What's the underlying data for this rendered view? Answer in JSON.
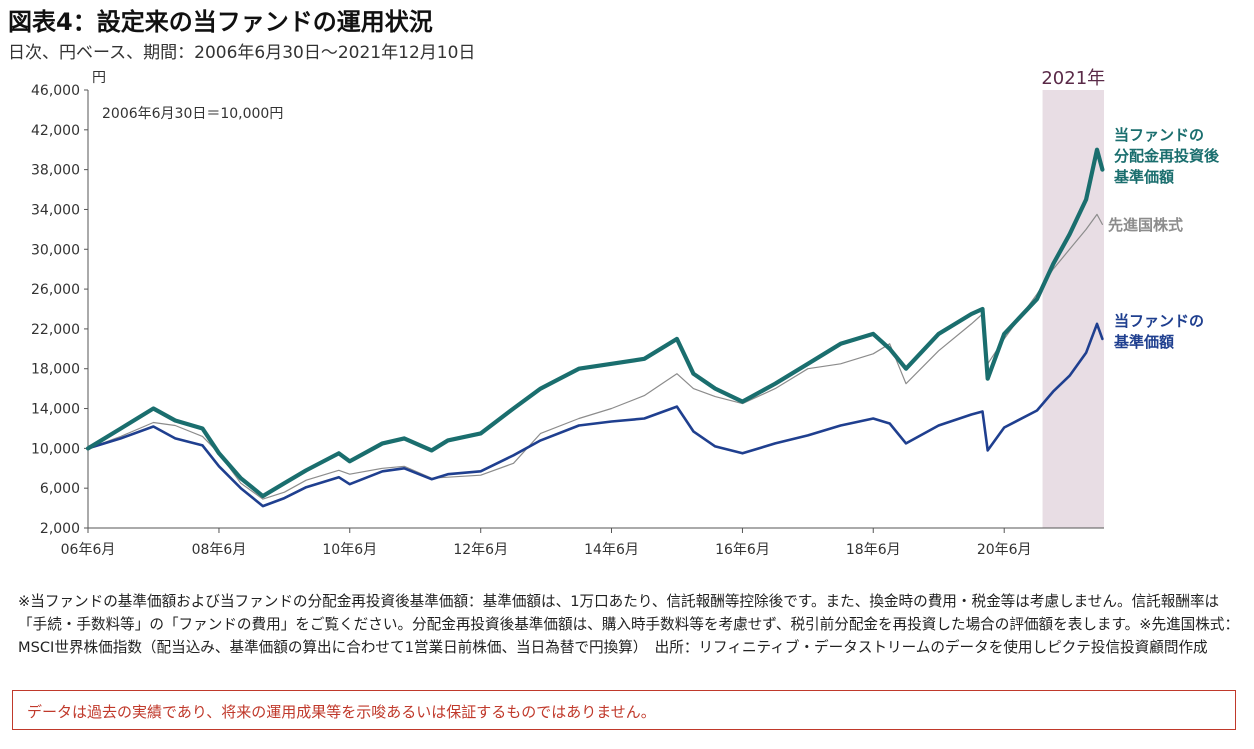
{
  "header": {
    "title": "図表4：設定来の当ファンドの運用状況",
    "subtitle": "日次、円ベース、期間：2006年6月30日～2021年12月10日"
  },
  "chart_data": {
    "type": "line",
    "ylabel": "円",
    "annotation": "2006年6月30日＝10,000円",
    "highlight_label": "2021年",
    "highlight_range": [
      "2021-01",
      "2021-12"
    ],
    "ylim": [
      2000,
      46000
    ],
    "y_ticks": [
      2000,
      6000,
      10000,
      14000,
      18000,
      22000,
      26000,
      30000,
      34000,
      38000,
      42000,
      46000
    ],
    "y_tick_labels": [
      "2,000",
      "6,000",
      "10,000",
      "14,000",
      "18,000",
      "22,000",
      "26,000",
      "30,000",
      "34,000",
      "38,000",
      "42,000",
      "46,000"
    ],
    "x_ticks": [
      "2006-06",
      "2008-06",
      "2010-06",
      "2012-06",
      "2014-06",
      "2016-06",
      "2018-06",
      "2020-06"
    ],
    "x_tick_labels": [
      "06年6月",
      "08年6月",
      "10年6月",
      "12年6月",
      "14年6月",
      "16年6月",
      "18年6月",
      "20年6月"
    ],
    "x": [
      "2006-06",
      "2006-12",
      "2007-06",
      "2007-10",
      "2008-03",
      "2008-06",
      "2008-10",
      "2009-02",
      "2009-06",
      "2009-10",
      "2010-04",
      "2010-06",
      "2010-12",
      "2011-04",
      "2011-09",
      "2011-12",
      "2012-06",
      "2012-12",
      "2013-05",
      "2013-12",
      "2014-06",
      "2014-12",
      "2015-06",
      "2015-09",
      "2016-01",
      "2016-06",
      "2016-12",
      "2017-06",
      "2017-12",
      "2018-06",
      "2018-09",
      "2018-12",
      "2019-06",
      "2019-12",
      "2020-02",
      "2020-03",
      "2020-06",
      "2020-12",
      "2021-03",
      "2021-06",
      "2021-09",
      "2021-11",
      "2021-12"
    ],
    "series": [
      {
        "name": "当ファンドの\n分配金再投資後\n基準価額",
        "color": "#1a6e6e",
        "width": 4.2,
        "values": [
          10000,
          12000,
          14000,
          12800,
          12000,
          9500,
          7000,
          5200,
          6500,
          7800,
          9500,
          8700,
          10500,
          11000,
          9800,
          10800,
          11500,
          14000,
          16000,
          18000,
          18500,
          19000,
          21000,
          17500,
          16000,
          14700,
          16500,
          18500,
          20500,
          21500,
          20000,
          18000,
          21500,
          23500,
          24000,
          17000,
          21500,
          25000,
          28500,
          31500,
          35000,
          40000,
          38000
        ]
      },
      {
        "name": "先進国株式",
        "color": "#8c8c8c",
        "width": 1.2,
        "values": [
          10000,
          11200,
          12600,
          12300,
          11200,
          9500,
          6500,
          4900,
          5600,
          6800,
          7800,
          7400,
          8000,
          8200,
          7000,
          7100,
          7300,
          8500,
          11500,
          13000,
          14000,
          15300,
          17500,
          16000,
          15200,
          14500,
          16000,
          18000,
          18500,
          19500,
          20500,
          16500,
          19800,
          22500,
          23500,
          18500,
          21000,
          25500,
          28000,
          30000,
          32000,
          33500,
          32500
        ]
      },
      {
        "name": "当ファンドの\n基準価額",
        "color": "#1f3f8f",
        "width": 2.6,
        "values": [
          10000,
          11000,
          12200,
          11000,
          10300,
          8200,
          6000,
          4200,
          5000,
          6100,
          7100,
          6400,
          7700,
          8000,
          6900,
          7400,
          7700,
          9300,
          10800,
          12300,
          12700,
          13000,
          14200,
          11700,
          10200,
          9500,
          10500,
          11300,
          12300,
          13000,
          12500,
          10500,
          12300,
          13400,
          13700,
          9800,
          12100,
          13800,
          15700,
          17300,
          19600,
          22500,
          21000
        ]
      }
    ]
  },
  "footnote": "※当ファンドの基準価額および当ファンドの分配金再投資後基準価額：基準価額は、1万口あたり、信託報酬等控除後です。また、換金時の費用・税金等は考慮しません。信託報酬率は「手続・手数料等」の「ファンドの費用」をご覧ください。分配金再投資後基準価額は、購入時手数料等を考慮せず、税引前分配金を再投資した場合の評価額を表します。※先進国株式：MSCI世界株価指数（配当込み、基準価額の算出に合わせて1営業日前株価、当日為替で円換算）　出所：リフィニティブ・データストリームのデータを使用しピクテ投信投資顧問作成",
  "disclaimer": "データは過去の実績であり、将来の運用成果等を示唆あるいは保証するものではありません。"
}
